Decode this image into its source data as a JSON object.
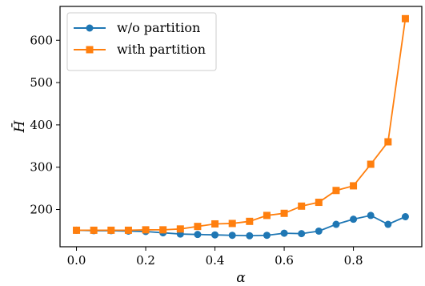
{
  "chart_data": {
    "type": "line",
    "title": "",
    "xlabel": "α",
    "ylabel": "H̄",
    "xlim": [
      -0.0475,
      0.9975
    ],
    "ylim": [
      112,
      680
    ],
    "xticks": [
      0.0,
      0.2,
      0.4,
      0.6,
      0.8
    ],
    "xtick_labels": [
      "0.0",
      "0.2",
      "0.4",
      "0.6",
      "0.8"
    ],
    "yticks": [
      200,
      300,
      400,
      500,
      600
    ],
    "ytick_labels": [
      "200",
      "300",
      "400",
      "500",
      "600"
    ],
    "grid": false,
    "legend_position": "top-left",
    "x": [
      0.0,
      0.05,
      0.1,
      0.15,
      0.2,
      0.25,
      0.3,
      0.35,
      0.4,
      0.45,
      0.5,
      0.55,
      0.6,
      0.65,
      0.7,
      0.75,
      0.8,
      0.85,
      0.9,
      0.95
    ],
    "series": [
      {
        "name": "w/o partition",
        "color": "#1f77b4",
        "marker": "circle",
        "values": [
          151,
          150,
          150,
          149,
          148,
          145,
          142,
          141,
          140,
          139,
          138,
          139,
          144,
          143,
          149,
          165,
          177,
          186,
          165,
          183
        ]
      },
      {
        "name": "with partition",
        "color": "#ff7f0e",
        "marker": "square",
        "values": [
          151,
          151,
          151,
          151,
          152,
          152,
          154,
          160,
          166,
          167,
          172,
          186,
          191,
          208,
          217,
          245,
          256,
          307,
          360,
          651
        ]
      }
    ]
  }
}
